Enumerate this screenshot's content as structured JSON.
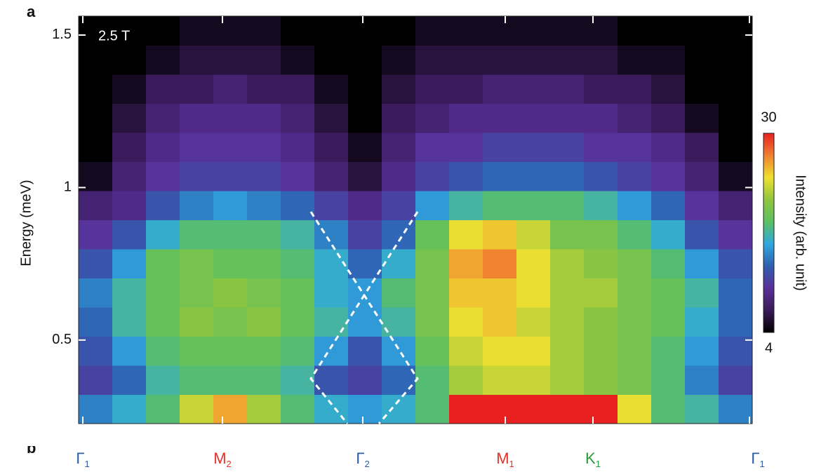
{
  "chart_data": {
    "type": "heatmap",
    "panel_labels": [
      "a",
      "b"
    ],
    "annotation": "2.5 T",
    "ylabel": "Energy (meV)",
    "colorbar_label": "Intensity (arb. unit)",
    "ylim": [
      0.226,
      1.562
    ],
    "yticks": [
      0.5,
      1,
      1.5
    ],
    "zlim": [
      4,
      30
    ],
    "zticks": [
      4,
      30
    ],
    "colormap": [
      "#000000",
      "#3a1a5a",
      "#5a2f9a",
      "#2f5fb0",
      "#2fa8e0",
      "#5cc060",
      "#8fc63f",
      "#f0e030",
      "#f08030",
      "#e82020"
    ],
    "x_labels": [
      {
        "text": "Γ",
        "sub": "1",
        "color": "#2a5caa"
      },
      {
        "text": "M",
        "sub": "2",
        "color": "#e8302a"
      },
      {
        "text": "Γ",
        "sub": "2",
        "color": "#2a5caa"
      },
      {
        "text": "M",
        "sub": "1",
        "color": "#e8302a"
      },
      {
        "text": "K",
        "sub": "1",
        "color": "#2e9a3a"
      },
      {
        "text": "Γ",
        "sub": "1",
        "color": "#2a5caa"
      }
    ],
    "z": [
      [
        14,
        16,
        18,
        23,
        26,
        22,
        18,
        16,
        15,
        16,
        18,
        30,
        30,
        30,
        30,
        30,
        24,
        18,
        17,
        14
      ],
      [
        11,
        13,
        17,
        18,
        18,
        18,
        17,
        12,
        11,
        13,
        18,
        22,
        23,
        23,
        22,
        21,
        20,
        18,
        14,
        11
      ],
      [
        12,
        15,
        18,
        19,
        19,
        19,
        18,
        15,
        12,
        15,
        19,
        23,
        24,
        24,
        22,
        21,
        20,
        18,
        15,
        12
      ],
      [
        13,
        17,
        19,
        21,
        20,
        21,
        19,
        17,
        15,
        17,
        20,
        24,
        25,
        23,
        22,
        21,
        20,
        19,
        16,
        13
      ],
      [
        14,
        17,
        19,
        20,
        21,
        20,
        19,
        16,
        15,
        18,
        20,
        25,
        25,
        24,
        22,
        22,
        20,
        19,
        17,
        13
      ],
      [
        12,
        15,
        19,
        20,
        19,
        19,
        18,
        16,
        13,
        16,
        20,
        26,
        27,
        24,
        22,
        21,
        20,
        18,
        15,
        12
      ],
      [
        10,
        12,
        16,
        18,
        18,
        18,
        17,
        14,
        11,
        13,
        19,
        24,
        25,
        23,
        20,
        20,
        18,
        16,
        12,
        10
      ],
      [
        8,
        9,
        12,
        14,
        15,
        14,
        13,
        11,
        9,
        11,
        15,
        17,
        18,
        18,
        18,
        17,
        15,
        13,
        10,
        8
      ],
      [
        5,
        8,
        10,
        11,
        11,
        11,
        10,
        8,
        6,
        9,
        11,
        12,
        13,
        13,
        13,
        12,
        11,
        10,
        8,
        5
      ],
      [
        4,
        7,
        9,
        10,
        10,
        10,
        9,
        7,
        5,
        8,
        10,
        10,
        11,
        11,
        11,
        10,
        10,
        9,
        7,
        4
      ],
      [
        4,
        6,
        8,
        9,
        9,
        9,
        8,
        6,
        4,
        7,
        8,
        9,
        9,
        9,
        9,
        9,
        8,
        7,
        5,
        4
      ],
      [
        4,
        5,
        7,
        7,
        8,
        7,
        7,
        5,
        4,
        6,
        7,
        7,
        8,
        8,
        8,
        7,
        7,
        6,
        4,
        4
      ],
      [
        4,
        4,
        5,
        6,
        6,
        6,
        5,
        4,
        4,
        5,
        6,
        6,
        6,
        6,
        6,
        6,
        5,
        5,
        4,
        4
      ],
      [
        4,
        4,
        4,
        5,
        5,
        5,
        4,
        4,
        4,
        4,
        5,
        5,
        5,
        5,
        5,
        5,
        4,
        4,
        4,
        4
      ]
    ]
  }
}
